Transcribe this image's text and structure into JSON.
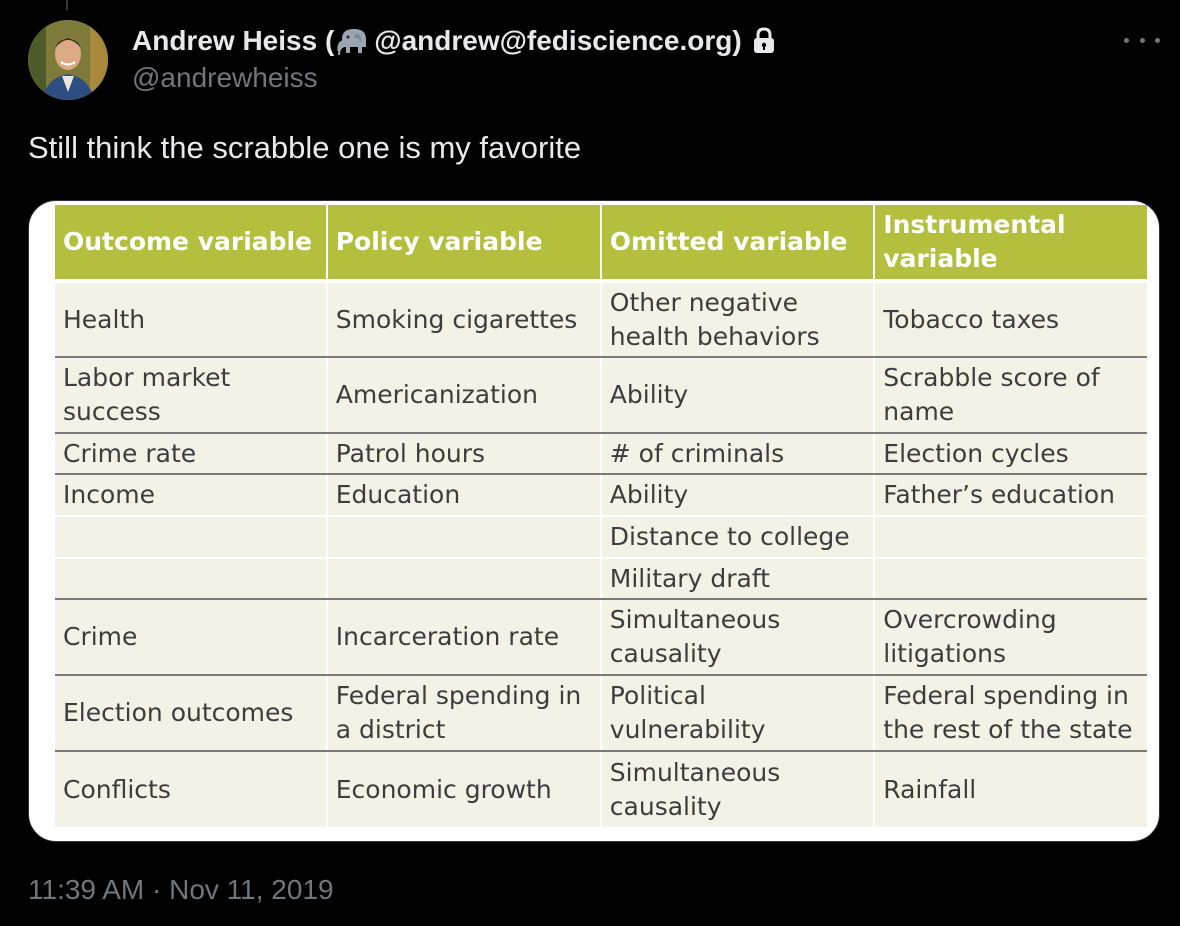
{
  "tweet": {
    "author": {
      "name_prefix": "Andrew Heiss (",
      "emoji_icon": "mastodon-elephant-icon",
      "name_suffix": " @andrew@fediscience.org)",
      "protected_icon": "lock-icon",
      "handle": "@andrewheiss"
    },
    "more_icon": "more-horizontal-icon",
    "text": "Still think the scrabble one is my favorite",
    "timestamp": "11:39 AM · Nov 11, 2019"
  },
  "media_table": {
    "colors": {
      "header_bg": "#b5bf3e",
      "header_text": "#ffffff",
      "cell_bg": "#f2f3e6",
      "cell_text": "#3d3d3d"
    },
    "headers": [
      "Outcome variable",
      "Policy variable",
      "Omitted variable",
      "Instrumental variable"
    ],
    "rows": [
      [
        "Health",
        "Smoking cigarettes",
        "Other negative health behaviors",
        "Tobacco taxes"
      ],
      [
        "Labor market success",
        "Americanization",
        "Ability",
        "Scrabble score of name"
      ],
      [
        "Crime rate",
        "Patrol hours",
        "# of criminals",
        "Election cycles"
      ],
      [
        "Income",
        "Education",
        "Ability",
        "Father’s education"
      ],
      [
        "",
        "",
        "Distance to college",
        ""
      ],
      [
        "",
        "",
        "Military draft",
        ""
      ],
      [
        "Crime",
        "Incarceration rate",
        "Simultaneous causality",
        "Overcrowding litigations"
      ],
      [
        "Election outcomes",
        "Federal spending in a district",
        "Political vulnerability",
        "Federal spending in the rest of the state"
      ],
      [
        "Conflicts",
        "Economic growth",
        "Simultaneous causality",
        "Rainfall"
      ]
    ]
  }
}
